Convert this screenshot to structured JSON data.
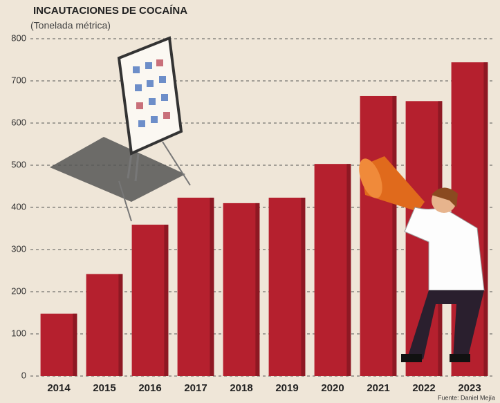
{
  "chart_data": {
    "type": "bar",
    "title": "INCAUTACIONES DE COCAÍNA",
    "subtitle": "(Tonelada métrica)",
    "categories": [
      "2014",
      "2015",
      "2016",
      "2017",
      "2018",
      "2019",
      "2020",
      "2021",
      "2022",
      "2023"
    ],
    "values": [
      148,
      242,
      359,
      423,
      410,
      423,
      503,
      664,
      652,
      744
    ],
    "color": "#b5202e",
    "ylim": [
      0,
      800
    ],
    "yticks": [
      0,
      100,
      200,
      300,
      400,
      500,
      600,
      700,
      800
    ],
    "grid": true,
    "source": "Fuente: Daniel Mejía"
  }
}
